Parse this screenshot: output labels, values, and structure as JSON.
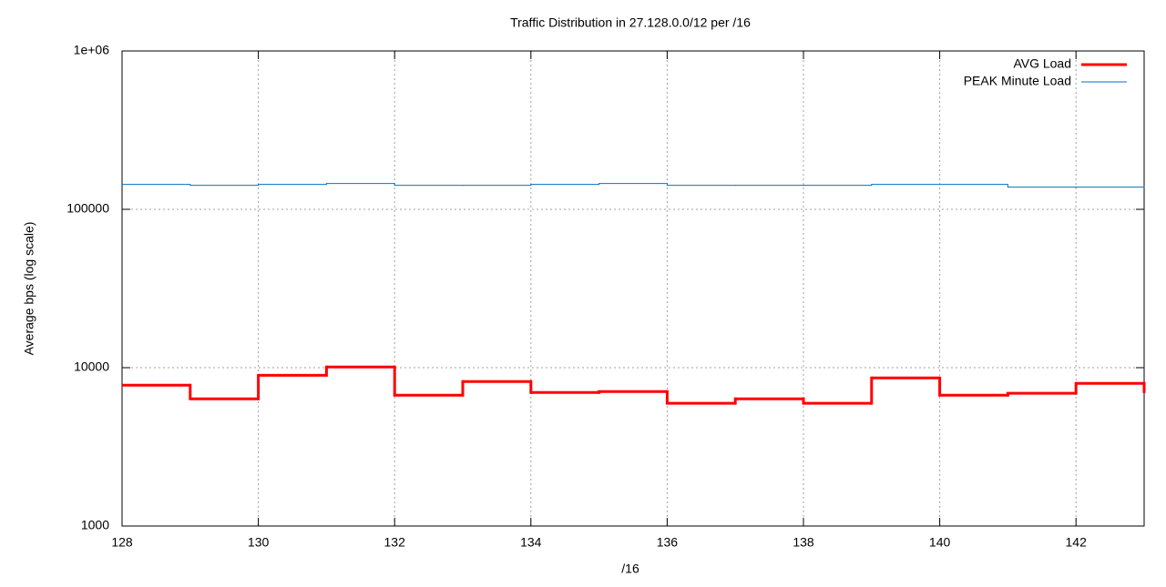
{
  "chart_data": {
    "type": "step",
    "title": "Traffic Distribution in 27.128.0.0/12 per /16",
    "x_label": "/16",
    "y_label": "Average bps (log scale)",
    "x": [
      128,
      129,
      130,
      131,
      132,
      133,
      134,
      135,
      136,
      137,
      138,
      139,
      140,
      141,
      142,
      143
    ],
    "series": [
      {
        "name": "AVG Load",
        "color": "#ff0000",
        "values": [
          7750,
          6360,
          8950,
          10100,
          6700,
          8170,
          6970,
          7060,
          5960,
          6360,
          5960,
          8610,
          6700,
          6890,
          7960,
          7060
        ]
      },
      {
        "name": "PEAK Minute Load",
        "color": "#0072c6",
        "values": [
          143600,
          141800,
          143600,
          145500,
          141800,
          141800,
          143600,
          145500,
          141800,
          141800,
          141800,
          143600,
          143600,
          138000,
          138000,
          138000
        ]
      }
    ],
    "xlim": [
      128,
      143
    ],
    "xticks": [
      128,
      130,
      132,
      134,
      136,
      138,
      140,
      142
    ],
    "ylim": [
      1000,
      1000000
    ],
    "yticks": [
      1000,
      10000,
      100000,
      {
        "value": 1000000,
        "label": "1e+06"
      }
    ],
    "log_y": true,
    "grid": true,
    "legend": "top-right"
  }
}
